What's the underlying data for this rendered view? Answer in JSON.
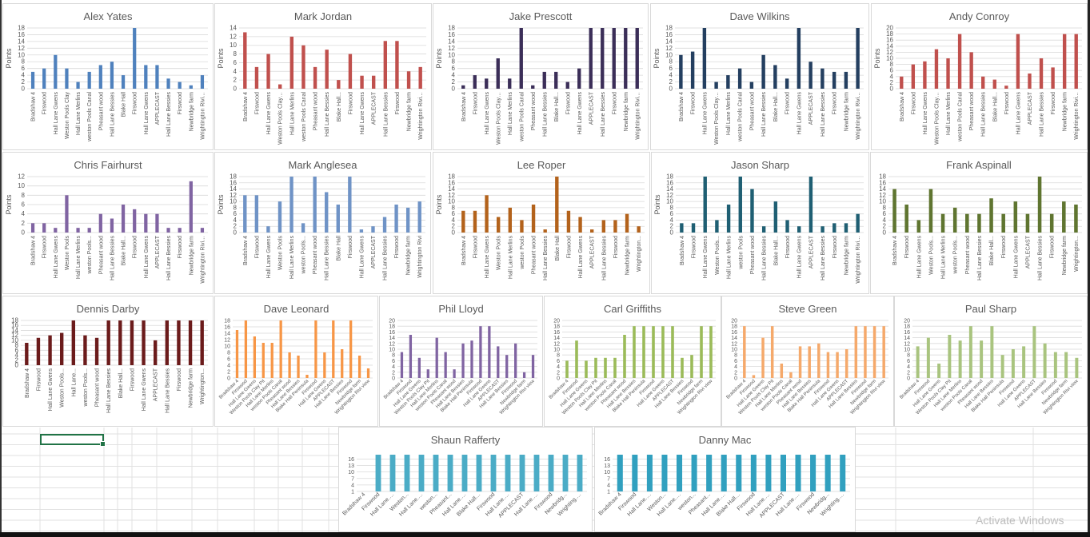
{
  "sheet": {
    "watermark": "Activate Windows",
    "selected_cell_visible": true
  },
  "palette": {
    "gridline": "#d9d9d9",
    "axis_text": "#595959",
    "title_text": "#595959",
    "cell_selection": "#217346"
  },
  "chart_data": [
    {
      "id": "alex-yates",
      "type": "bar",
      "title": "Alex Yates",
      "ylabel": "Points",
      "color": "#4f81bd",
      "ylim": [
        0,
        18
      ],
      "ytick_step": 2,
      "categories": [
        "Bradshaw 4",
        "Firswood",
        "Hall Lane Gwens",
        "Weston Pools Clay",
        "Hall Lane Merlins",
        "weston Pools Canal",
        "Pheasant wood",
        "Hall Lane Bessies",
        "Blake Hall",
        "Firswood",
        "Hall Lane Gwens",
        "APPLECAST",
        "Hall Lane Bessies",
        "Firswood",
        "Newbridge farm",
        "Wrightington Rivi..."
      ],
      "values": [
        5,
        6,
        10,
        6,
        2,
        5,
        7,
        8,
        4,
        18,
        7,
        7,
        3,
        2,
        1,
        4
      ]
    },
    {
      "id": "mark-jordan",
      "type": "bar",
      "title": "Mark Jordan",
      "ylabel": "Points",
      "color": "#c0504d",
      "ylim": [
        0,
        14
      ],
      "ytick_step": 2,
      "categories": [
        "Bradshaw 4",
        "Firswood",
        "Hall Lane Gwens",
        "Weston Pools Clay...",
        "Hall Lane Merlins",
        "weston Pools Canal",
        "Pheasant wood",
        "Hall Lane Bessies",
        "Blake Hall...",
        "Firswood",
        "Hall Lane Gwens",
        "APPLECAST",
        "Hall Lane Bessies",
        "Firswood",
        "Newbridge farm",
        "Wrightington Rivi..."
      ],
      "values": [
        13,
        5,
        8,
        1,
        12,
        10,
        5,
        9,
        2,
        8,
        3,
        3,
        11,
        11,
        4,
        5
      ]
    },
    {
      "id": "jake-prescott",
      "type": "bar",
      "title": "Jake Prescott",
      "ylabel": "Points",
      "color": "#3b2e58",
      "ylim": [
        0,
        18
      ],
      "ytick_step": 2,
      "categories": [
        "Bradshaw 4",
        "Firswood",
        "Hall Lane Gwens",
        "Weston Pools Clay...",
        "Hall Lane Merlins",
        "weston Pools Canal",
        "Pheasant wood",
        "Hall Lane Bessies",
        "Blake Hall...",
        "Firswood",
        "Hall Lane Gwens",
        "APPLECAST",
        "Hall Lane Bessies",
        "Firswood",
        "Newbridge farm",
        "Wrightington Rivi..."
      ],
      "values": [
        1,
        4,
        3,
        9,
        3,
        18,
        1,
        5,
        5,
        2,
        6,
        18,
        18,
        18,
        18,
        18
      ]
    },
    {
      "id": "dave-wilkins",
      "type": "bar",
      "title": "Dave Wilkins",
      "ylabel": "Points",
      "color": "#243f60",
      "ylim": [
        0,
        18
      ],
      "ytick_step": 2,
      "categories": [
        "Bradshaw 4",
        "Firswood",
        "Hall Lane Gwens",
        "Weston Pools Clay...",
        "Hall Lane Merlins",
        "weston Pools Canal",
        "Pheasant wood",
        "Hall Lane Bessies",
        "Blake Hall...",
        "Firswood",
        "Hall Lane Gwens",
        "APPLECAST",
        "Hall Lane Bessies",
        "Firswood",
        "Newbridge farm",
        "Wrightington Rivi..."
      ],
      "values": [
        10,
        11,
        18,
        2,
        4,
        6,
        2,
        10,
        7,
        3,
        18,
        8,
        6,
        5,
        5,
        18
      ]
    },
    {
      "id": "andy-conroy",
      "type": "bar",
      "title": "Andy Conroy",
      "ylabel": "Points",
      "color": "#c0504d",
      "ylim": [
        0,
        20
      ],
      "ytick_step": 2,
      "categories": [
        "Bradshaw 4",
        "Firswood",
        "Hall Lane Gwens",
        "Weston Pools Clay...",
        "Hall Lane Merlins",
        "weston Pools Canal",
        "Pheasant wood",
        "Hall Lane Bessies",
        "Blake Hall...",
        "Firswood",
        "Hall Lane Gwens",
        "APPLECAST",
        "Hall Lane Bessies",
        "Firswood",
        "Newbridge farm",
        "Wrightington Rivi..."
      ],
      "values": [
        4,
        8,
        9,
        13,
        10,
        18,
        12,
        4,
        3,
        1,
        18,
        5,
        10,
        7,
        18,
        18
      ]
    },
    {
      "id": "chris-fairhurst",
      "type": "bar",
      "title": "Chris Fairhurst",
      "ylabel": "Points",
      "color": "#8064a2",
      "ylim": [
        0,
        12
      ],
      "ytick_step": 2,
      "categories": [
        "Bradshaw 4",
        "Firswood",
        "Hall Lane Gwens",
        "Weston Pools",
        "Hall Lane Merlins",
        "weston Pools...",
        "Pheasant wood",
        "Hall Lane Bessies",
        "Blake Hall...",
        "Firswood",
        "Hall Lane Gwens",
        "APPLECAST",
        "Hall Lane Bessies",
        "Firswood",
        "Newbridge farm",
        "Wrightington Rivi..."
      ],
      "values": [
        2,
        2,
        1,
        8,
        1,
        1,
        4,
        3,
        6,
        5,
        4,
        4,
        1,
        1,
        11,
        1
      ]
    },
    {
      "id": "mark-anglesea",
      "type": "bar",
      "title": "Mark Anglesea",
      "ylabel": "Points",
      "color": "#6f93c6",
      "ylim": [
        0,
        18
      ],
      "ytick_step": 2,
      "categories": [
        "Bradshaw 4",
        "Firswood",
        "Hall Lane Gwens",
        "Weston Pools",
        "Hall Lane Merlins",
        "weston Pools...",
        "Pheasant wood",
        "Hall Lane Bessies",
        "Blake Hall",
        "Firswood",
        "Hall Lane Gwens",
        "APPLECAST",
        "Hall Lane Bessies",
        "Firswood",
        "Newbridge farm",
        "Wrightington Rivi"
      ],
      "values": [
        12,
        12,
        2,
        10,
        18,
        3,
        18,
        13,
        9,
        18,
        1,
        2,
        5,
        9,
        8,
        10
      ]
    },
    {
      "id": "lee-roper",
      "type": "bar",
      "title": "Lee Roper",
      "ylabel": "Points",
      "color": "#b3621b",
      "ylim": [
        0,
        18
      ],
      "ytick_step": 2,
      "categories": [
        "Bradshaw 4",
        "Firswood",
        "Hall Lane Gwens",
        "Weston Pools",
        "Hall Lane Merlins",
        "weston Pools",
        "Pheasant wood",
        "Hall Lane Bessies",
        "Blake Hall",
        "Firswood",
        "Hall Lane Gwens",
        "APPLECAST",
        "Hall Lane Bessies",
        "Firswood",
        "Newbridge farm",
        "Wrightington..."
      ],
      "values": [
        7,
        7,
        12,
        5,
        8,
        4,
        9,
        1,
        18,
        7,
        5,
        1,
        4,
        4,
        6,
        2
      ]
    },
    {
      "id": "jason-sharp",
      "type": "bar",
      "title": "Jason Sharp",
      "ylabel": "Points",
      "color": "#1f5f73",
      "ylim": [
        0,
        18
      ],
      "ytick_step": 2,
      "categories": [
        "Bradshaw 4",
        "Firswood",
        "Hall Lane Gwens",
        "Weston Pools...",
        "Hall Lane Merlins",
        "weston Pools",
        "Pheasant wood",
        "Hall Lane Bessies",
        "Blake Hall...",
        "Firswood",
        "Hall Lane Gwens",
        "APPLECAST",
        "Hall Lane Bessies",
        "Firswood",
        "Newbridge farm",
        "Wrightington Rivi..."
      ],
      "values": [
        3,
        3,
        18,
        4,
        9,
        18,
        14,
        2,
        10,
        4,
        2,
        18,
        2,
        3,
        3,
        6
      ]
    },
    {
      "id": "frank-aspinall",
      "type": "bar",
      "title": "Frank Aspinall",
      "ylabel": "",
      "color": "#5f7530",
      "ylim": [
        0,
        18
      ],
      "ytick_step": 2,
      "categories": [
        "Bradshaw 4",
        "Firswood",
        "Hall Lane Gwens",
        "Weston Pools...",
        "Hall Lane Merlins",
        "weston Pools...",
        "Pheasant wood",
        "Hall Lane Bessies",
        "Blake Hall...",
        "Firswood",
        "Hall Lane Gwens",
        "APPLECAST",
        "Hall Lane Bessies",
        "Firswood",
        "Newbridge farm",
        "Wrightington..."
      ],
      "values": [
        14,
        9,
        4,
        14,
        6,
        8,
        6,
        6,
        11,
        6,
        10,
        6,
        18,
        6,
        10,
        9
      ]
    },
    {
      "id": "dennis-darby",
      "type": "bar",
      "title": "Dennis Darby",
      "ylabel": "",
      "color": "#6b1b1b",
      "ylim": [
        0,
        18
      ],
      "ytick_step": 2,
      "categories": [
        "Bradshaw 4",
        "Firswood",
        "Hall Lane Gwens",
        "Weston Pools...",
        "Hall Lane...",
        "weston Pools...",
        "Pheasant wood",
        "Hall Lane Bessies",
        "Blake Hall...",
        "Firswood",
        "Hall Lane Gwens",
        "APPLECAST",
        "Hall Lane Bessies",
        "Firswood",
        "Newbridge farm",
        "Wrightington..."
      ],
      "values": [
        9,
        11,
        12,
        13,
        18,
        12,
        11,
        18,
        18,
        18,
        18,
        10,
        18,
        18,
        18,
        18
      ]
    },
    {
      "id": "dave-leonard",
      "type": "bar",
      "title": "Dave Leonard",
      "ylabel": "",
      "color": "#f79646",
      "ylim": [
        0,
        18
      ],
      "ytick_step": 2,
      "rotated_labels": true,
      "categories": [
        "Bradshaw 4",
        "Firswood",
        "Hall Lane Gwens",
        "Weston Pools Clay Pit",
        "Hall Lane Merlins",
        "weston Pools Canal",
        "Pheasant wood",
        "Hall Lane Bessies",
        "Blake Hall Peninsula",
        "Firswood",
        "Hall Lane Gwens",
        "APPLECAST",
        "Hall Lane Bessies",
        "Firswood",
        "Newbridge farm",
        "Wrightington Rivi view"
      ],
      "values": [
        15,
        18,
        13,
        11,
        11,
        18,
        8,
        7,
        1,
        18,
        8,
        18,
        9,
        18,
        7,
        3
      ]
    },
    {
      "id": "phil-lloyd",
      "type": "bar",
      "title": "Phil Lloyd",
      "ylabel": "",
      "color": "#8064a2",
      "ylim": [
        0,
        20
      ],
      "ytick_step": 2,
      "rotated_labels": true,
      "categories": [
        "Bradshaw 4",
        "Firswood",
        "Hall Lane Gwens",
        "Weston Pools Clay Pit",
        "Hall Lane Merlins",
        "weston Pools Canal",
        "Pheasant wood",
        "Hall Lane Bessies",
        "Blake Hall Peninsula",
        "Firswood",
        "Hall Lane Gwens",
        "APPLECAST",
        "Hall Lane Bessies",
        "Firswood",
        "Newbridge farm",
        "Wrightington Rivi view"
      ],
      "values": [
        9,
        15,
        7,
        3,
        14,
        9,
        3,
        12,
        13,
        18,
        18,
        11,
        8,
        12,
        2,
        8
      ]
    },
    {
      "id": "carl-griffiths",
      "type": "bar",
      "title": "Carl Griffiths",
      "ylabel": "",
      "color": "#9bbb59",
      "ylim": [
        0,
        20
      ],
      "ytick_step": 2,
      "rotated_labels": true,
      "categories": [
        "Bradshaw 4",
        "Firswood",
        "Hall Lane Gwens",
        "Weston Pools Clay Pit",
        "Hall Lane Merlins",
        "weston Pools Canal",
        "Pheasant wood",
        "Hall Lane Bessies",
        "Blake Hall Peninsula",
        "Firswood",
        "Hall Lane Gwens",
        "APPLECAST",
        "Hall Lane Bessies",
        "Firswood",
        "Newbridge farm",
        "Wrightington Rivi view"
      ],
      "values": [
        6,
        13,
        6,
        7,
        7,
        7,
        15,
        18,
        18,
        18,
        18,
        18,
        7,
        8,
        18,
        18
      ]
    },
    {
      "id": "steve-green",
      "type": "bar",
      "title": "Steve Green",
      "ylabel": "",
      "color": "#f5a96b",
      "ylim": [
        0,
        20
      ],
      "ytick_step": 2,
      "rotated_labels": true,
      "categories": [
        "Bradshaw 4",
        "Firswood",
        "Hall Lane Gwens",
        "Weston Pools Clay Pit",
        "Hall Lane Merlins",
        "weston Pools Canal",
        "Pheasant wood",
        "Hall Lane Bessies",
        "Blake Hall Peninsula",
        "Firswood",
        "Hall Lane Gwens",
        "APPLECAST",
        "Hall Lane Bessies",
        "Firswood",
        "Newbridge farm",
        "Wrightington Rivi view"
      ],
      "values": [
        18,
        1,
        14,
        18,
        5,
        2,
        11,
        11,
        12,
        9,
        9,
        10,
        18,
        18,
        18,
        18
      ]
    },
    {
      "id": "paul-sharp",
      "type": "bar",
      "title": "Paul Sharp",
      "ylabel": "",
      "color": "#a9c47f",
      "ylim": [
        0,
        20
      ],
      "ytick_step": 2,
      "rotated_labels": true,
      "categories": [
        "Bradshaw 4",
        "Firswood",
        "Hall Lane Gwens",
        "Weston Pools Clay Pit",
        "Hall Lane Merlins",
        "weston Pools Canal",
        "Pheasant wood",
        "Hall Lane Bessies",
        "Blake Hall Peninsula",
        "Firswood",
        "Hall Lane Gwens",
        "APPLECAST",
        "Hall Lane Bessies",
        "Firswood",
        "Newbridge farm",
        "Wrightington Rivi view"
      ],
      "values": [
        11,
        14,
        5,
        15,
        13,
        18,
        13,
        18,
        8,
        10,
        11,
        18,
        12,
        9,
        9,
        7
      ]
    },
    {
      "id": "shaun-rafferty",
      "type": "bar",
      "title": "Shaun Rafferty",
      "ylabel": "",
      "color": "#4bacc6",
      "ylim": [
        1,
        18
      ],
      "yticks": [
        1,
        4,
        7,
        10,
        13,
        16
      ],
      "rotated_labels": true,
      "categories": [
        "Bradshaw 4",
        "Firswood",
        "Hall Lane...",
        "Weston...",
        "Hall Lane...",
        "weston...",
        "Pheasant...",
        "Hall Lane...",
        "Blake Hall...",
        "Firswood",
        "Hall Lane...",
        "APPLECAST",
        "Hall Lane...",
        "Firswood",
        "Newbridg...",
        "Wrighting..."
      ],
      "values": [
        0,
        18,
        18,
        18,
        18,
        18,
        18,
        18,
        18,
        18,
        18,
        18,
        18,
        18,
        18,
        18
      ]
    },
    {
      "id": "danny-mac",
      "type": "bar",
      "title": "Danny Mac",
      "ylabel": "",
      "color": "#31a0bf",
      "ylim": [
        1,
        18
      ],
      "yticks": [
        1,
        4,
        7,
        10,
        13,
        16
      ],
      "rotated_labels": true,
      "categories": [
        "Bradshaw 4",
        "Firswood",
        "Hall Lane...",
        "Weston...",
        "Hall Lane...",
        "weston...",
        "Pheasant...",
        "Hall Lane...",
        "Blake Hall...",
        "Firswood",
        "Hall Lane...",
        "APPLECAST",
        "Hall Lane...",
        "Firswood",
        "Newbridg...",
        "Wrighting..."
      ],
      "values": [
        18,
        18,
        18,
        18,
        18,
        18,
        18,
        18,
        18,
        18,
        18,
        18,
        18,
        18,
        18,
        18
      ]
    }
  ]
}
